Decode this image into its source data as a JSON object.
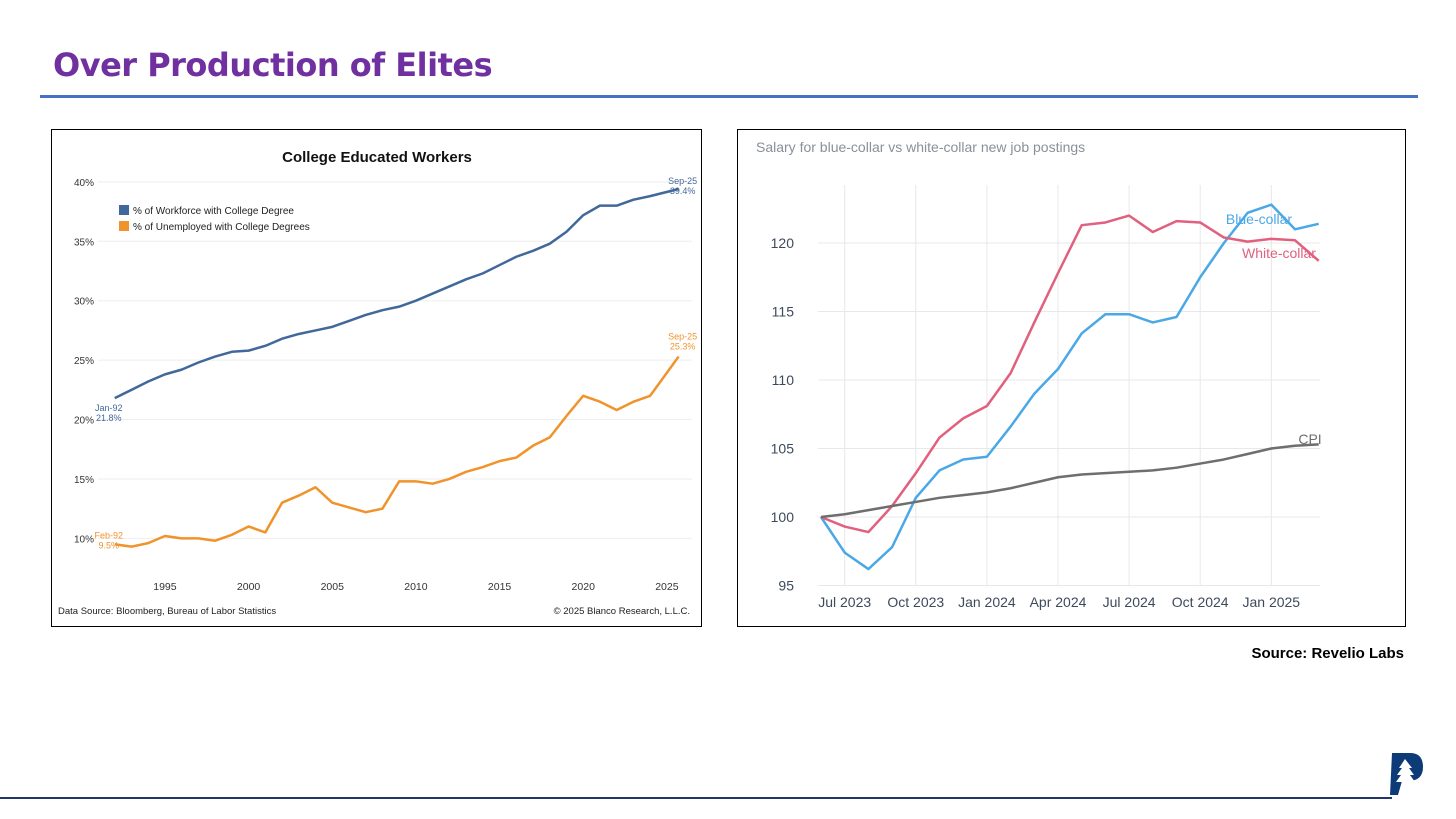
{
  "slide": {
    "title": "Over Production of Elites",
    "source": "Source: Revelio Labs",
    "colors": {
      "title": "#7030A0",
      "rule": "#4472C4",
      "bottom_rule": "#1f3864"
    }
  },
  "chart_data": [
    {
      "type": "line",
      "title": "College Educated Workers",
      "xlabel": "",
      "ylabel": "",
      "xlim": [
        1991,
        2026.5
      ],
      "ylim": [
        7,
        41
      ],
      "x_ticks": [
        "1995",
        "2000",
        "2005",
        "2010",
        "2015",
        "2020",
        "2025"
      ],
      "y_ticks": [
        "10%",
        "15%",
        "20%",
        "25%",
        "30%",
        "35%",
        "40%"
      ],
      "legend_position": "top-left",
      "grid": true,
      "x": [
        1992,
        1993,
        1994,
        1995,
        1996,
        1997,
        1998,
        1999,
        2000,
        2001,
        2002,
        2003,
        2004,
        2005,
        2006,
        2007,
        2008,
        2009,
        2010,
        2011,
        2012,
        2013,
        2014,
        2015,
        2016,
        2017,
        2018,
        2019,
        2020,
        2021,
        2022,
        2023,
        2024,
        2025.7
      ],
      "series": [
        {
          "name": "% of Workforce with College Degree",
          "color": "#41689A",
          "values": [
            21.8,
            22.5,
            23.2,
            23.8,
            24.2,
            24.8,
            25.3,
            25.7,
            25.8,
            26.2,
            26.8,
            27.2,
            27.5,
            27.8,
            28.3,
            28.8,
            29.2,
            29.5,
            30.0,
            30.6,
            31.2,
            31.8,
            32.3,
            33.0,
            33.7,
            34.2,
            34.8,
            35.8,
            37.2,
            38.0,
            38.0,
            38.5,
            38.8,
            39.4
          ],
          "start_label": [
            "Jan-92",
            "21.8%"
          ],
          "end_label": [
            "Sep-25",
            "39.4%"
          ]
        },
        {
          "name": "% of Unemployed with College Degrees",
          "color": "#F0932B",
          "values": [
            9.5,
            9.3,
            9.6,
            10.2,
            10.0,
            10.0,
            9.8,
            10.3,
            11.0,
            10.5,
            13.0,
            13.6,
            14.3,
            13.0,
            12.6,
            12.2,
            12.5,
            14.8,
            14.8,
            14.6,
            15.0,
            15.6,
            16.0,
            16.5,
            16.8,
            17.8,
            18.5,
            20.3,
            22.0,
            21.5,
            20.8,
            21.5,
            22.0,
            25.3
          ],
          "start_label": [
            "Feb-92",
            "9.5%"
          ],
          "end_label": [
            "Sep-25",
            "25.3%"
          ]
        }
      ],
      "footer_left": "Data Source: Bloomberg, Bureau of Labor Statistics",
      "footer_right": "© 2025 Blanco Research, L.L.C."
    },
    {
      "type": "line",
      "title": "Salary for blue-collar vs white-collar new job postings",
      "xlabel": "",
      "ylabel": "",
      "ylim": [
        95,
        125
      ],
      "x_ticks": [
        "Jul 2023",
        "Oct 2023",
        "Jan 2024",
        "Apr 2024",
        "Jul 2024",
        "Oct 2024",
        "Jan 2025"
      ],
      "y_ticks": [
        "95",
        "100",
        "105",
        "110",
        "115",
        "120"
      ],
      "grid": true,
      "x": [
        "Jun 2023",
        "Jul 2023",
        "Aug 2023",
        "Sep 2023",
        "Oct 2023",
        "Nov 2023",
        "Dec 2023",
        "Jan 2024",
        "Feb 2024",
        "Mar 2024",
        "Apr 2024",
        "May 2024",
        "Jun 2024",
        "Jul 2024",
        "Aug 2024",
        "Sep 2024",
        "Oct 2024",
        "Nov 2024",
        "Dec 2024",
        "Jan 2025",
        "Feb 2025",
        "Mar 2025"
      ],
      "series": [
        {
          "name": "Blue-collar",
          "color": "#4AA8E6",
          "values": [
            100,
            97.4,
            96.2,
            97.8,
            101.4,
            103.4,
            104.2,
            104.4,
            106.6,
            109.0,
            110.8,
            113.4,
            114.8,
            114.8,
            114.2,
            114.6,
            117.5,
            120.0,
            122.2,
            122.8,
            121.0,
            121.4
          ]
        },
        {
          "name": "White-collar",
          "color": "#E0607E",
          "values": [
            100,
            99.3,
            98.9,
            100.8,
            103.2,
            105.8,
            107.2,
            108.1,
            110.5,
            114.2,
            117.8,
            121.3,
            121.5,
            122.0,
            120.8,
            121.6,
            121.5,
            120.4,
            120.1,
            120.3,
            120.2,
            118.7
          ]
        },
        {
          "name": "CPI",
          "color": "#6E6E6E",
          "values": [
            100,
            100.2,
            100.5,
            100.8,
            101.1,
            101.4,
            101.6,
            101.8,
            102.1,
            102.5,
            102.9,
            103.1,
            103.2,
            103.3,
            103.4,
            103.6,
            103.9,
            104.2,
            104.6,
            105.0,
            105.2,
            105.3
          ]
        }
      ]
    }
  ]
}
